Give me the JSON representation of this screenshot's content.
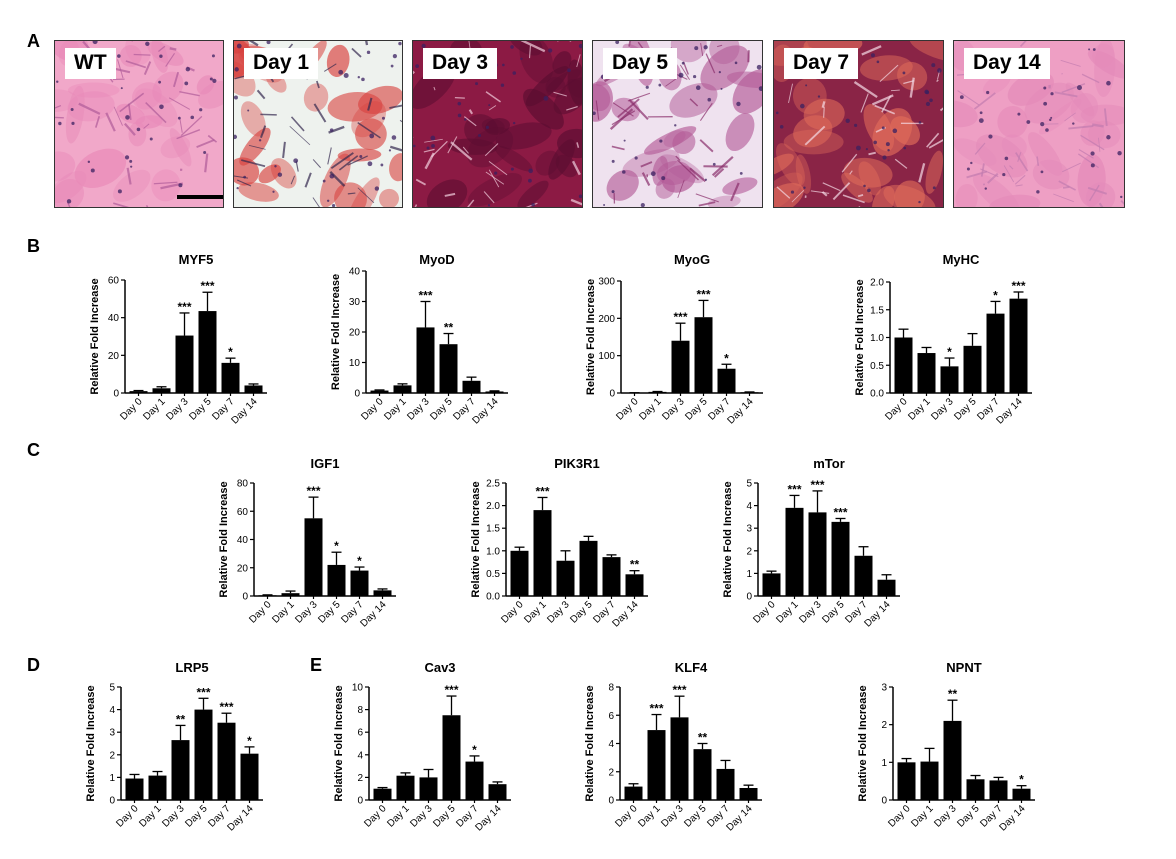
{
  "panels": {
    "a": "A",
    "b": "B",
    "c": "C",
    "d": "D",
    "e": "E"
  },
  "tiles": [
    {
      "label": "WT",
      "base": "#f1a8c9",
      "stroke": "#b05c9a",
      "shade": "#e889b8"
    },
    {
      "label": "Day 1",
      "base": "#eef2ee",
      "stroke": "#34294f",
      "shade": "#d8413e"
    },
    {
      "label": "Day 3",
      "base": "#8c1a44",
      "stroke": "#f4d0df",
      "shade": "#5b0d31"
    },
    {
      "label": "Day 5",
      "base": "#efe2ef",
      "stroke": "#8a2e6b",
      "shade": "#b35a97"
    },
    {
      "label": "Day 7",
      "base": "#8a2446",
      "stroke": "#f5dbe6",
      "shade": "#e06b5a"
    },
    {
      "label": "Day 14",
      "base": "#ee9fc4",
      "stroke": "#c27cb0",
      "shade": "#e48ab9"
    }
  ],
  "chart_data": [
    {
      "type": "bar",
      "title": "MYF5",
      "ylabel": "Relative Fold Increase",
      "categories": [
        "Day 0",
        "Day 1",
        "Day 3",
        "Day 5",
        "Day 7",
        "Day 14"
      ],
      "values": [
        1,
        2.5,
        30.5,
        43.5,
        16,
        4
      ],
      "errors": [
        0.3,
        0.8,
        12,
        10,
        2.5,
        0.8
      ],
      "sig": [
        "",
        "",
        "***",
        "***",
        "*",
        ""
      ],
      "ylim": [
        0,
        60
      ],
      "ticks": [
        "0",
        "20",
        "40",
        "60"
      ]
    },
    {
      "type": "bar",
      "title": "MyoD",
      "ylabel": "Relative Fold Increase",
      "categories": [
        "Day 0",
        "Day 1",
        "Day 3",
        "Day 5",
        "Day 7",
        "Day 14"
      ],
      "values": [
        0.8,
        2.5,
        21.5,
        16,
        4,
        0.5
      ],
      "errors": [
        0.2,
        0.5,
        8.5,
        3.5,
        1.2,
        0.2
      ],
      "sig": [
        "",
        "",
        "***",
        "**",
        "",
        ""
      ],
      "ylim": [
        0,
        40
      ],
      "ticks": [
        "0",
        "10",
        "20",
        "30",
        "40"
      ]
    },
    {
      "type": "bar",
      "title": "MyoG",
      "ylabel": "Relative Fold Increase",
      "categories": [
        "Day 0",
        "Day 1",
        "Day 3",
        "Day 5",
        "Day 7",
        "Day 14"
      ],
      "values": [
        0.5,
        3,
        140,
        203,
        65,
        2
      ],
      "errors": [
        0.2,
        1,
        47,
        45,
        12,
        0.8
      ],
      "sig": [
        "",
        "",
        "***",
        "***",
        "*",
        ""
      ],
      "ylim": [
        0,
        300
      ],
      "ticks": [
        "0",
        "100",
        "200",
        "300"
      ]
    },
    {
      "type": "bar",
      "title": "MyHC",
      "ylabel": "Relative Fold Increase",
      "categories": [
        "Day 0",
        "Day 1",
        "Day 3",
        "Day 5",
        "Day 7",
        "Day 14"
      ],
      "values": [
        1.0,
        0.72,
        0.48,
        0.85,
        1.43,
        1.7
      ],
      "errors": [
        0.15,
        0.1,
        0.15,
        0.22,
        0.22,
        0.12
      ],
      "sig": [
        "",
        "",
        "*",
        "",
        "*",
        "***"
      ],
      "ylim": [
        0,
        2.0
      ],
      "ticks": [
        "0.0",
        "0.5",
        "1.0",
        "1.5",
        "2.0"
      ]
    },
    {
      "type": "bar",
      "title": "IGF1",
      "ylabel": "Relative Fold Increase",
      "categories": [
        "Day 0",
        "Day 1",
        "Day 3",
        "Day 5",
        "Day 7",
        "Day 14"
      ],
      "values": [
        0.5,
        2,
        55,
        22,
        18,
        4
      ],
      "errors": [
        0.3,
        1.5,
        15,
        9,
        2.5,
        1
      ],
      "sig": [
        "",
        "",
        "***",
        "*",
        "*",
        ""
      ],
      "ylim": [
        0,
        80
      ],
      "ticks": [
        "0",
        "20",
        "40",
        "60",
        "80"
      ]
    },
    {
      "type": "bar",
      "title": "PIK3R1",
      "ylabel": "Relative Fold Increase",
      "categories": [
        "Day 0",
        "Day 1",
        "Day 3",
        "Day 5",
        "Day 7",
        "Day 14"
      ],
      "values": [
        1.0,
        1.9,
        0.78,
        1.22,
        0.86,
        0.48
      ],
      "errors": [
        0.08,
        0.28,
        0.22,
        0.1,
        0.05,
        0.08
      ],
      "sig": [
        "",
        "***",
        "",
        "",
        "",
        "**"
      ],
      "ylim": [
        0,
        2.5
      ],
      "ticks": [
        "0.0",
        "0.5",
        "1.0",
        "1.5",
        "2.0",
        "2.5"
      ]
    },
    {
      "type": "bar",
      "title": "mTor",
      "ylabel": "Relative Fold Increase",
      "categories": [
        "Day 0",
        "Day 1",
        "Day 3",
        "Day 5",
        "Day 7",
        "Day 14"
      ],
      "values": [
        1.0,
        3.9,
        3.7,
        3.28,
        1.78,
        0.72
      ],
      "errors": [
        0.1,
        0.55,
        0.95,
        0.15,
        0.4,
        0.22
      ],
      "sig": [
        "",
        "***",
        "***",
        "***",
        "",
        ""
      ],
      "ylim": [
        0,
        5
      ],
      "ticks": [
        "0",
        "1",
        "2",
        "3",
        "4",
        "5"
      ]
    },
    {
      "type": "bar",
      "title": "LRP5",
      "ylabel": "Relative Fold Increase",
      "categories": [
        "Day 0",
        "Day 1",
        "Day 3",
        "Day 5",
        "Day 7",
        "Day 14"
      ],
      "values": [
        0.95,
        1.08,
        2.65,
        4.0,
        3.42,
        2.05
      ],
      "errors": [
        0.18,
        0.18,
        0.65,
        0.5,
        0.42,
        0.3
      ],
      "sig": [
        "",
        "",
        "**",
        "***",
        "***",
        "*"
      ],
      "ylim": [
        0,
        5
      ],
      "ticks": [
        "0",
        "1",
        "2",
        "3",
        "4",
        "5"
      ]
    },
    {
      "type": "bar",
      "title": "Cav3",
      "ylabel": "Relative Fold Increase",
      "categories": [
        "Day 0",
        "Day 1",
        "Day 3",
        "Day 5",
        "Day 7",
        "Day 14"
      ],
      "values": [
        1.0,
        2.15,
        2.0,
        7.5,
        3.4,
        1.4
      ],
      "errors": [
        0.1,
        0.25,
        0.7,
        1.7,
        0.5,
        0.2
      ],
      "sig": [
        "",
        "",
        "",
        "***",
        "*",
        ""
      ],
      "ylim": [
        0,
        10
      ],
      "ticks": [
        "0",
        "2",
        "4",
        "6",
        "8",
        "10"
      ]
    },
    {
      "type": "bar",
      "title": "KLF4",
      "ylabel": "Relative Fold Increase",
      "categories": [
        "Day 0",
        "Day 1",
        "Day 3",
        "Day 5",
        "Day 7",
        "Day 14"
      ],
      "values": [
        0.95,
        4.95,
        5.85,
        3.6,
        2.2,
        0.85
      ],
      "errors": [
        0.2,
        1.1,
        1.5,
        0.4,
        0.6,
        0.2
      ],
      "sig": [
        "",
        "***",
        "***",
        "**",
        "",
        ""
      ],
      "ylim": [
        0,
        8
      ],
      "ticks": [
        "0",
        "2",
        "4",
        "6",
        "8"
      ]
    },
    {
      "type": "bar",
      "title": "NPNT",
      "ylabel": "Relative Fold Increase",
      "categories": [
        "Day 0",
        "Day 1",
        "Day 3",
        "Day 5",
        "Day 7",
        "Day 14"
      ],
      "values": [
        1.0,
        1.02,
        2.1,
        0.55,
        0.52,
        0.3
      ],
      "errors": [
        0.1,
        0.35,
        0.55,
        0.1,
        0.08,
        0.08
      ],
      "sig": [
        "",
        "",
        "**",
        "",
        "",
        "*"
      ],
      "ylim": [
        0,
        3
      ],
      "ticks": [
        "0",
        "1",
        "2",
        "3"
      ]
    }
  ]
}
